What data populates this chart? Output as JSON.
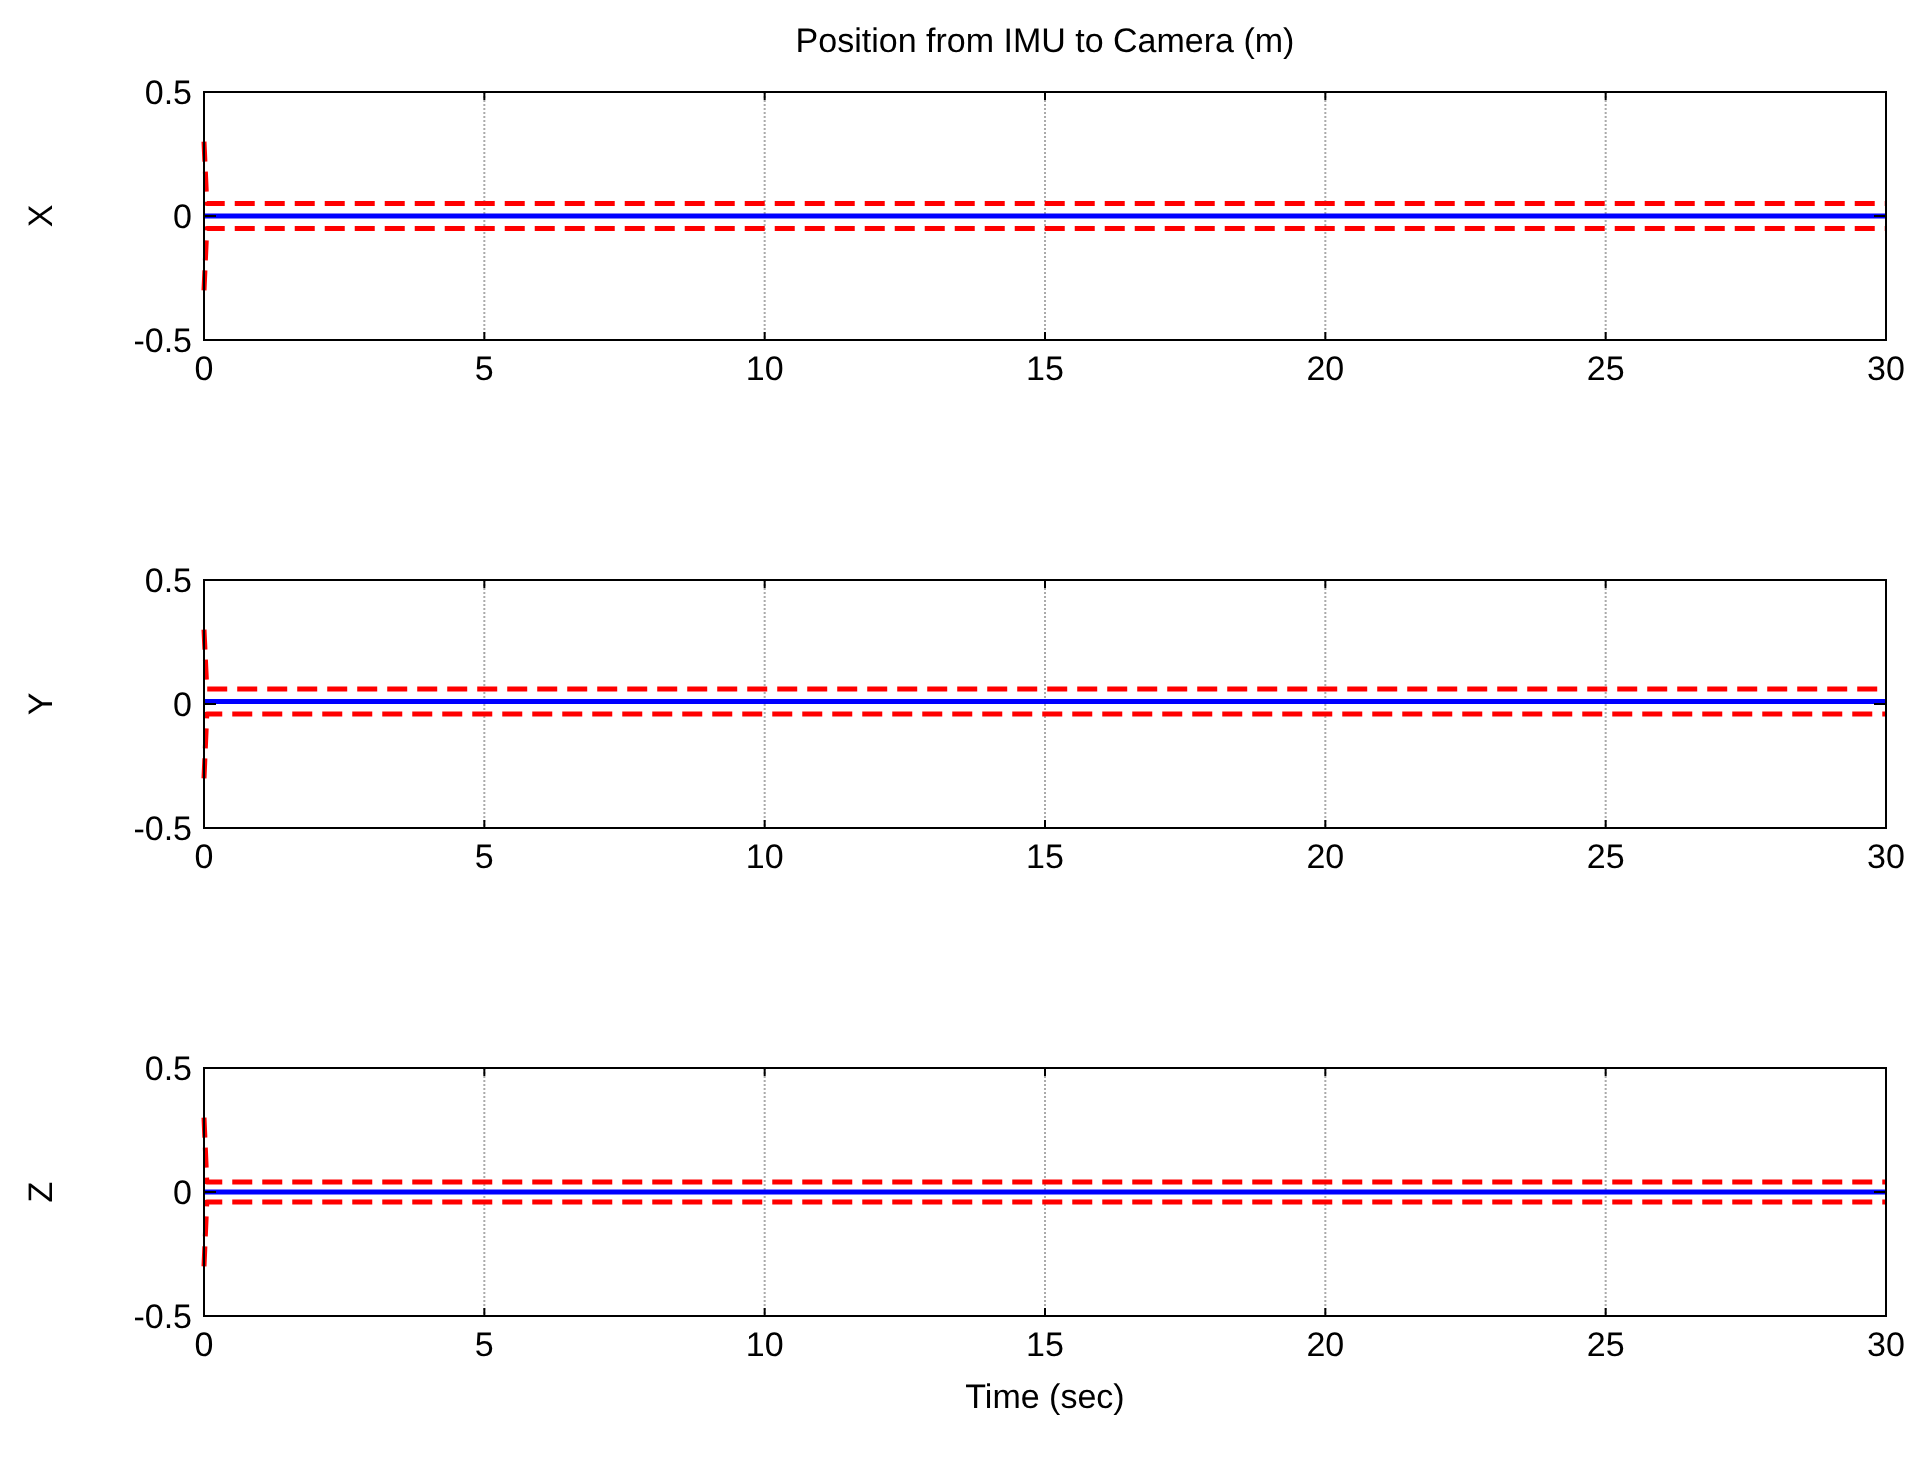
{
  "chart_data": [
    {
      "type": "line",
      "title": "Position from IMU to Camera (m)",
      "ylabel": "X",
      "xlim": [
        0,
        30
      ],
      "xticks": [
        0,
        5,
        10,
        15,
        20,
        25,
        30
      ],
      "ylim": [
        -0.5,
        0.5
      ],
      "yticks": [
        -0.5,
        0,
        0.5
      ],
      "grid": "x",
      "series": [
        {
          "color": "#0000ff",
          "x": [
            0,
            30
          ],
          "values": [
            0,
            0
          ],
          "line_style": "solid"
        },
        {
          "color": "#ff0000",
          "x": [
            0,
            0.05,
            30
          ],
          "values": [
            0.3,
            0.05,
            0.05
          ],
          "line_style": "dashed"
        },
        {
          "color": "#ff0000",
          "x": [
            0,
            0.05,
            30
          ],
          "values": [
            -0.3,
            -0.05,
            -0.05
          ],
          "line_style": "dashed"
        }
      ]
    },
    {
      "type": "line",
      "ylabel": "Y",
      "xlim": [
        0,
        30
      ],
      "xticks": [
        0,
        5,
        10,
        15,
        20,
        25,
        30
      ],
      "ylim": [
        -0.5,
        0.5
      ],
      "yticks": [
        -0.5,
        0,
        0.5
      ],
      "grid": "x",
      "series": [
        {
          "color": "#0000ff",
          "x": [
            0,
            30
          ],
          "values": [
            0.01,
            0.01
          ],
          "line_style": "solid"
        },
        {
          "color": "#ff0000",
          "x": [
            0,
            0.05,
            30
          ],
          "values": [
            0.3,
            0.06,
            0.06
          ],
          "line_style": "dashed"
        },
        {
          "color": "#ff0000",
          "x": [
            0,
            0.05,
            30
          ],
          "values": [
            -0.3,
            -0.04,
            -0.04
          ],
          "line_style": "dashed"
        }
      ]
    },
    {
      "type": "line",
      "ylabel": "Z",
      "xlabel": "Time (sec)",
      "xlim": [
        0,
        30
      ],
      "xticks": [
        0,
        5,
        10,
        15,
        20,
        25,
        30
      ],
      "ylim": [
        -0.5,
        0.5
      ],
      "yticks": [
        -0.5,
        0,
        0.5
      ],
      "grid": "x",
      "series": [
        {
          "color": "#0000ff",
          "x": [
            0,
            30
          ],
          "values": [
            0,
            0
          ],
          "line_style": "solid"
        },
        {
          "color": "#ff0000",
          "x": [
            0,
            0.05,
            30
          ],
          "values": [
            0.3,
            0.04,
            0.04
          ],
          "line_style": "dashed"
        },
        {
          "color": "#ff0000",
          "x": [
            0,
            0.05,
            30
          ],
          "values": [
            -0.3,
            -0.04,
            -0.04
          ],
          "line_style": "dashed"
        }
      ]
    }
  ]
}
